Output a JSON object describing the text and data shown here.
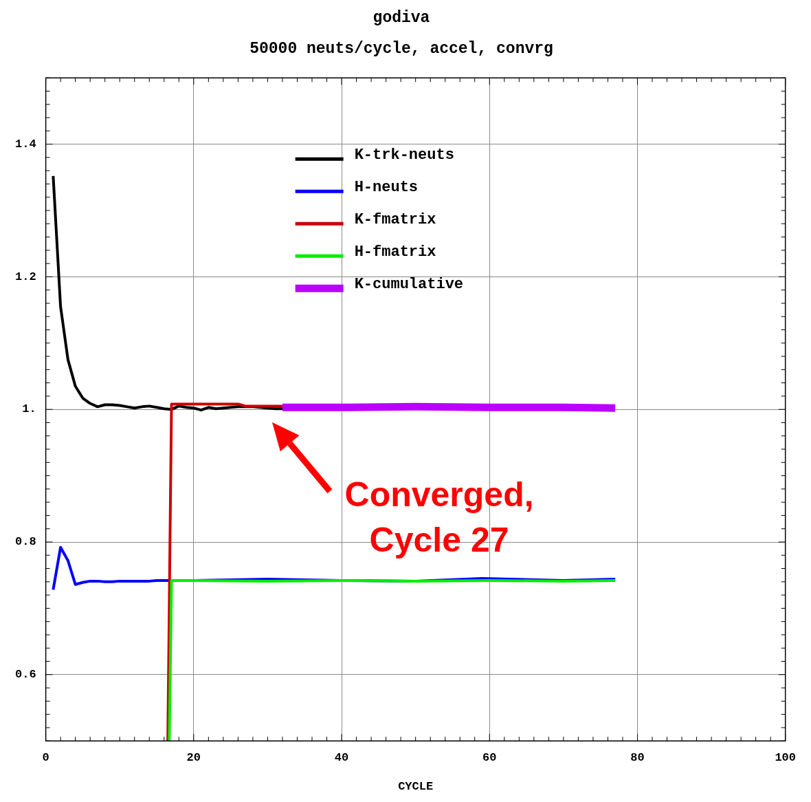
{
  "chart_data": {
    "type": "line",
    "title": "godiva",
    "subtitle": "50000 neuts/cycle, accel, convrg",
    "xlabel": "CYCLE",
    "xlim": [
      0,
      100
    ],
    "xticks": [
      0,
      20,
      40,
      60,
      80,
      100
    ],
    "ylim": [
      0.5,
      1.5
    ],
    "yticks": [
      0.6,
      0.8,
      {
        "value": 1,
        "label": "1."
      },
      1.2,
      1.4
    ],
    "grid": true,
    "legend": "top",
    "marker": "none",
    "series": [
      {
        "name": "K-trk-neuts",
        "color": "#000000",
        "x": [
          1,
          2,
          3,
          4,
          5,
          6,
          7,
          8,
          9,
          10,
          11,
          12,
          13,
          14,
          15,
          16,
          17,
          18,
          19,
          20,
          21,
          22,
          23,
          24,
          25,
          26,
          27,
          28,
          29,
          30,
          31,
          32
        ],
        "values": [
          1.352,
          1.155,
          1.075,
          1.035,
          1.017,
          1.009,
          1.004,
          1.007,
          1.007,
          1.006,
          1.004,
          1.002,
          1.004,
          1.005,
          1.003,
          1.001,
          1.0,
          1.005,
          1.003,
          1.002,
          0.999,
          1.003,
          1.001,
          1.002,
          1.003,
          1.004,
          1.004,
          1.004,
          1.003,
          1.002,
          1.001,
          1.001
        ]
      },
      {
        "name": "H-neuts",
        "color": "#0000ff",
        "x": [
          1,
          2,
          3,
          4,
          5,
          6,
          7,
          8,
          9,
          10,
          11,
          12,
          13,
          14,
          15,
          16,
          17,
          20,
          30,
          40,
          50,
          59,
          70,
          77
        ],
        "values": [
          0.728,
          0.792,
          0.772,
          0.736,
          0.739,
          0.741,
          0.741,
          0.74,
          0.74,
          0.741,
          0.741,
          0.741,
          0.741,
          0.741,
          0.742,
          0.742,
          0.742,
          0.742,
          0.744,
          0.742,
          0.741,
          0.745,
          0.742,
          0.744
        ]
      },
      {
        "name": "K-fmatrix",
        "color": "#cc0000",
        "x": [
          16.5,
          17,
          20,
          26,
          27,
          32
        ],
        "values": [
          0.5,
          1.008,
          1.008,
          1.008,
          1.005,
          1.005
        ]
      },
      {
        "name": "H-fmatrix",
        "color": "#00ee00",
        "x": [
          16.7,
          17,
          20,
          30,
          40,
          50,
          60,
          70,
          77
        ],
        "values": [
          0.5,
          0.742,
          0.742,
          0.741,
          0.742,
          0.741,
          0.742,
          0.741,
          0.742
        ]
      },
      {
        "name": "K-cumulative",
        "color": "#bb00ff",
        "x": [
          32,
          40,
          50,
          60,
          70,
          77
        ],
        "values": [
          1.003,
          1.003,
          1.004,
          1.003,
          1.003,
          1.002
        ]
      }
    ],
    "annotations": [
      "Converged,\nCycle 27"
    ]
  }
}
